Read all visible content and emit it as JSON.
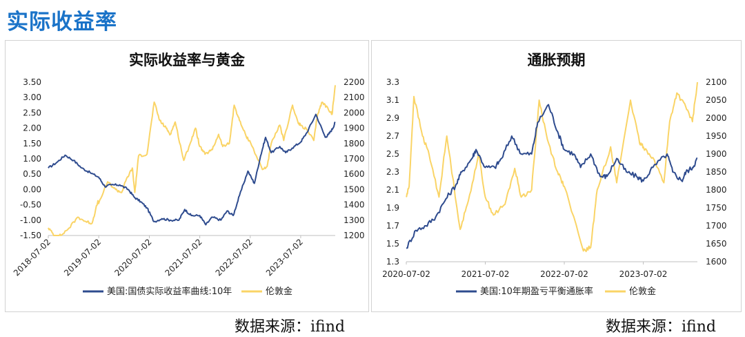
{
  "page": {
    "title": "实际收益率",
    "sources": [
      "数据来源：ifind",
      "数据来源：ifind"
    ]
  },
  "colors": {
    "blue": "#2e4b8e",
    "gold": "#fad466",
    "axis": "#bfbfbf",
    "text": "#222222"
  },
  "chart_data": [
    {
      "type": "line",
      "title": "实际收益率与黄金",
      "legend_position": "bottom",
      "grid": false,
      "x_ticks": [
        "2018-07-02",
        "2019-07-02",
        "2020-07-02",
        "2021-07-02",
        "2022-07-02",
        "2023-07-02"
      ],
      "x_range": [
        "2018-07-02",
        "2024-03-08"
      ],
      "y_left": {
        "range": [
          -1.5,
          3.5
        ],
        "ticks": [
          "3.50",
          "3.00",
          "2.50",
          "2.00",
          "1.50",
          "1.00",
          "0.50",
          "0.00",
          "-0.50",
          "-1.00",
          "-1.50"
        ]
      },
      "y_right": {
        "range": [
          1200,
          2200
        ],
        "ticks": [
          "2200",
          "2100",
          "2000",
          "1900",
          "1800",
          "1700",
          "1600",
          "1500",
          "1400",
          "1300",
          "1200"
        ]
      },
      "series": [
        {
          "name": "美国:国债实际收益率曲线:10年",
          "axis": "left",
          "color": "#2e4b8e",
          "points": [
            [
              "2018-07-02",
              0.7
            ],
            [
              "2018-09-01",
              0.88
            ],
            [
              "2018-11-01",
              1.12
            ],
            [
              "2019-01-01",
              0.95
            ],
            [
              "2019-03-01",
              0.7
            ],
            [
              "2019-05-01",
              0.55
            ],
            [
              "2019-07-02",
              0.4
            ],
            [
              "2019-08-15",
              0.1
            ],
            [
              "2019-10-01",
              0.15
            ],
            [
              "2019-12-01",
              0.15
            ],
            [
              "2020-02-01",
              0.0
            ],
            [
              "2020-03-15",
              -0.25
            ],
            [
              "2020-05-01",
              -0.4
            ],
            [
              "2020-06-15",
              -0.6
            ],
            [
              "2020-08-05",
              -1.05
            ],
            [
              "2020-10-01",
              -0.95
            ],
            [
              "2020-12-01",
              -1.0
            ],
            [
              "2021-02-01",
              -1.0
            ],
            [
              "2021-03-15",
              -0.65
            ],
            [
              "2021-05-01",
              -0.85
            ],
            [
              "2021-07-02",
              -0.85
            ],
            [
              "2021-08-15",
              -1.15
            ],
            [
              "2021-10-01",
              -0.9
            ],
            [
              "2021-12-01",
              -1.0
            ],
            [
              "2022-01-15",
              -0.7
            ],
            [
              "2022-03-01",
              -0.85
            ],
            [
              "2022-04-15",
              -0.2
            ],
            [
              "2022-06-15",
              0.6
            ],
            [
              "2022-08-01",
              0.2
            ],
            [
              "2022-09-15",
              1.1
            ],
            [
              "2022-10-21",
              1.7
            ],
            [
              "2022-12-01",
              1.2
            ],
            [
              "2023-02-01",
              1.4
            ],
            [
              "2023-03-15",
              1.2
            ],
            [
              "2023-05-01",
              1.35
            ],
            [
              "2023-07-02",
              1.55
            ],
            [
              "2023-08-15",
              1.85
            ],
            [
              "2023-10-20",
              2.45
            ],
            [
              "2023-12-27",
              1.7
            ],
            [
              "2024-01-20",
              1.8
            ],
            [
              "2024-02-20",
              2.0
            ],
            [
              "2024-03-08",
              2.2
            ]
          ]
        },
        {
          "name": "伦敦金",
          "axis": "right",
          "color": "#fad466",
          "points": [
            [
              "2018-07-02",
              1250
            ],
            [
              "2018-08-15",
              1200
            ],
            [
              "2018-10-01",
              1200
            ],
            [
              "2018-12-01",
              1250
            ],
            [
              "2019-02-01",
              1320
            ],
            [
              "2019-04-01",
              1290
            ],
            [
              "2019-05-15",
              1280
            ],
            [
              "2019-06-25",
              1420
            ],
            [
              "2019-07-02",
              1410
            ],
            [
              "2019-09-04",
              1550
            ],
            [
              "2019-11-01",
              1500
            ],
            [
              "2019-12-15",
              1480
            ],
            [
              "2020-01-15",
              1560
            ],
            [
              "2020-03-01",
              1640
            ],
            [
              "2020-03-19",
              1480
            ],
            [
              "2020-04-15",
              1720
            ],
            [
              "2020-06-15",
              1730
            ],
            [
              "2020-08-06",
              2070
            ],
            [
              "2020-09-15",
              1950
            ],
            [
              "2020-11-01",
              1900
            ],
            [
              "2020-12-01",
              1860
            ],
            [
              "2021-01-05",
              1940
            ],
            [
              "2021-03-08",
              1690
            ],
            [
              "2021-04-15",
              1780
            ],
            [
              "2021-06-01",
              1900
            ],
            [
              "2021-07-02",
              1780
            ],
            [
              "2021-08-09",
              1730
            ],
            [
              "2021-10-01",
              1760
            ],
            [
              "2021-11-15",
              1860
            ],
            [
              "2021-12-15",
              1780
            ],
            [
              "2022-02-01",
              1800
            ],
            [
              "2022-03-08",
              2050
            ],
            [
              "2022-04-15",
              1950
            ],
            [
              "2022-06-01",
              1850
            ],
            [
              "2022-07-02",
              1810
            ],
            [
              "2022-09-28",
              1630
            ],
            [
              "2022-11-01",
              1650
            ],
            [
              "2022-12-01",
              1800
            ],
            [
              "2023-02-01",
              1920
            ],
            [
              "2023-03-01",
              1820
            ],
            [
              "2023-05-04",
              2050
            ],
            [
              "2023-06-15",
              1930
            ],
            [
              "2023-07-02",
              1920
            ],
            [
              "2023-08-15",
              1890
            ],
            [
              "2023-10-05",
              1820
            ],
            [
              "2023-11-01",
              1990
            ],
            [
              "2023-12-04",
              2070
            ],
            [
              "2024-01-15",
              2030
            ],
            [
              "2024-02-14",
              1990
            ],
            [
              "2024-03-08",
              2180
            ]
          ]
        }
      ]
    },
    {
      "type": "line",
      "title": "通胀预期",
      "legend_position": "bottom",
      "grid": false,
      "x_ticks": [
        "2020-07-02",
        "2021-07-02",
        "2022-07-02",
        "2023-07-02"
      ],
      "x_range": [
        "2020-07-02",
        "2024-03-08"
      ],
      "y_left": {
        "range": [
          1.3,
          3.3
        ],
        "ticks": [
          "3.3",
          "3.1",
          "2.9",
          "2.7",
          "2.5",
          "2.3",
          "2.1",
          "1.9",
          "1.7",
          "1.5",
          "1.3"
        ]
      },
      "y_right": {
        "range": [
          1600,
          2100
        ],
        "ticks": [
          "2100",
          "2050",
          "2000",
          "1950",
          "1900",
          "1850",
          "1800",
          "1750",
          "1700",
          "1650",
          "1600"
        ]
      },
      "series": [
        {
          "name": "美国:10年期盈亏平衡通胀率",
          "axis": "left",
          "color": "#2e4b8e",
          "points": [
            [
              "2020-07-02",
              1.45
            ],
            [
              "2020-08-15",
              1.65
            ],
            [
              "2020-10-01",
              1.7
            ],
            [
              "2020-11-15",
              1.8
            ],
            [
              "2021-01-01",
              2.0
            ],
            [
              "2021-02-15",
              2.15
            ],
            [
              "2021-03-15",
              2.3
            ],
            [
              "2021-05-01",
              2.45
            ],
            [
              "2021-05-20",
              2.55
            ],
            [
              "2021-07-02",
              2.35
            ],
            [
              "2021-08-15",
              2.35
            ],
            [
              "2021-09-15",
              2.45
            ],
            [
              "2021-11-01",
              2.7
            ],
            [
              "2021-12-15",
              2.5
            ],
            [
              "2022-02-01",
              2.5
            ],
            [
              "2022-03-01",
              2.85
            ],
            [
              "2022-04-20",
              3.05
            ],
            [
              "2022-06-01",
              2.75
            ],
            [
              "2022-07-02",
              2.55
            ],
            [
              "2022-08-15",
              2.5
            ],
            [
              "2022-09-15",
              2.35
            ],
            [
              "2022-11-01",
              2.5
            ],
            [
              "2022-12-15",
              2.25
            ],
            [
              "2023-01-15",
              2.25
            ],
            [
              "2023-03-01",
              2.45
            ],
            [
              "2023-04-15",
              2.3
            ],
            [
              "2023-06-01",
              2.25
            ],
            [
              "2023-07-02",
              2.2
            ],
            [
              "2023-08-15",
              2.35
            ],
            [
              "2023-10-20",
              2.5
            ],
            [
              "2023-11-15",
              2.3
            ],
            [
              "2023-12-27",
              2.2
            ],
            [
              "2024-01-15",
              2.3
            ],
            [
              "2024-02-15",
              2.35
            ],
            [
              "2024-03-08",
              2.45
            ]
          ]
        },
        {
          "name": "伦敦金",
          "axis": "right",
          "color": "#fad466",
          "points": [
            [
              "2020-07-02",
              1780
            ],
            [
              "2020-07-15",
              1810
            ],
            [
              "2020-08-06",
              2060
            ],
            [
              "2020-09-15",
              1950
            ],
            [
              "2020-10-15",
              1900
            ],
            [
              "2020-11-30",
              1780
            ],
            [
              "2021-01-05",
              1950
            ],
            [
              "2021-03-08",
              1690
            ],
            [
              "2021-04-15",
              1770
            ],
            [
              "2021-06-01",
              1900
            ],
            [
              "2021-07-02",
              1780
            ],
            [
              "2021-08-09",
              1730
            ],
            [
              "2021-10-01",
              1760
            ],
            [
              "2021-11-15",
              1860
            ],
            [
              "2021-12-15",
              1780
            ],
            [
              "2022-02-01",
              1800
            ],
            [
              "2022-03-08",
              2050
            ],
            [
              "2022-04-15",
              1940
            ],
            [
              "2022-06-01",
              1850
            ],
            [
              "2022-07-02",
              1810
            ],
            [
              "2022-09-28",
              1630
            ],
            [
              "2022-11-01",
              1640
            ],
            [
              "2022-12-01",
              1800
            ],
            [
              "2023-02-01",
              1920
            ],
            [
              "2023-03-01",
              1820
            ],
            [
              "2023-05-04",
              2050
            ],
            [
              "2023-06-15",
              1930
            ],
            [
              "2023-07-02",
              1920
            ],
            [
              "2023-08-15",
              1890
            ],
            [
              "2023-10-05",
              1820
            ],
            [
              "2023-11-01",
              1990
            ],
            [
              "2023-12-04",
              2070
            ],
            [
              "2024-01-15",
              2030
            ],
            [
              "2024-02-14",
              1990
            ],
            [
              "2024-03-08",
              2100
            ]
          ]
        }
      ]
    }
  ]
}
